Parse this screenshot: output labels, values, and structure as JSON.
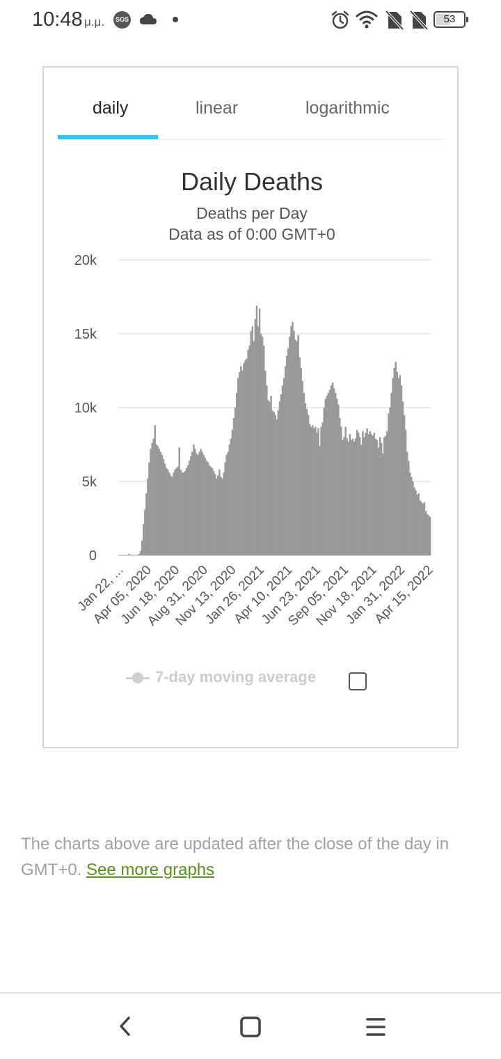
{
  "status_bar": {
    "time": "10:48",
    "ampm": "μ.μ.",
    "sos": "SOS",
    "battery": "53",
    "battery_fraction": 0.53,
    "icons": [
      "sos-icon",
      "cloud-icon",
      "dot-icon",
      "alarm-icon",
      "wifi-icon",
      "no-sim-icon",
      "no-sim-icon",
      "battery-icon"
    ]
  },
  "tabs": [
    {
      "label": "daily",
      "active": true
    },
    {
      "label": "linear",
      "active": false
    },
    {
      "label": "logarithmic",
      "active": false
    }
  ],
  "colors": {
    "accent": "#33c6ec",
    "bar": "#999999",
    "link": "#5a8f1f"
  },
  "chart_data": {
    "type": "bar",
    "title": "Daily Deaths",
    "subtitle": "Deaths per Day",
    "subtitle2": "Data as of 0:00 GMT+0",
    "ylim": [
      0,
      20000
    ],
    "y_ticks": [
      0,
      5000,
      10000,
      15000,
      20000
    ],
    "y_tick_labels": [
      "0",
      "5k",
      "10k",
      "15k",
      "20k"
    ],
    "x_tick_labels": [
      "Jan 22, ...",
      "Apr 05, 2020",
      "Jun 18, 2020",
      "Aug 31, 2020",
      "Nov 13, 2020",
      "Jan 26, 2021",
      "Apr 10, 2021",
      "Jun 23, 2021",
      "Sep 05, 2021",
      "Nov 18, 2021",
      "Jan 31, 2022",
      "Apr 15, 2022"
    ],
    "grid": true,
    "legend": [
      "7-day moving average"
    ],
    "x_start": "Jan 22, 2020",
    "bar_interval_days": 4,
    "values": [
      0,
      0,
      0,
      0,
      0,
      0,
      0,
      100,
      0,
      0,
      0,
      0,
      0,
      0,
      100,
      300,
      1000,
      2100,
      3100,
      4200,
      5200,
      6300,
      7200,
      7600,
      7900,
      8800,
      7500,
      7400,
      7200,
      7000,
      6800,
      6500,
      6200,
      5900,
      5800,
      5600,
      5400,
      5300,
      5600,
      5800,
      5900,
      6000,
      7300,
      5800,
      5600,
      5600,
      5700,
      5900,
      6100,
      6400,
      6700,
      7000,
      7500,
      7200,
      6900,
      6800,
      7000,
      7200,
      7000,
      6800,
      6600,
      6400,
      6300,
      6100,
      6000,
      5900,
      5700,
      5500,
      5200,
      5400,
      5800,
      5300,
      5200,
      5600,
      6300,
      6800,
      7000,
      7500,
      7900,
      8500,
      9300,
      10000,
      11000,
      12000,
      12400,
      12800,
      12500,
      13000,
      13200,
      13300,
      13900,
      14200,
      15200,
      15500,
      14500,
      16000,
      16900,
      15500,
      16700,
      15000,
      14800,
      14200,
      12500,
      11500,
      10500,
      10400,
      10800,
      9800,
      9700,
      9500,
      9200,
      9800,
      10400,
      10900,
      11500,
      12000,
      12800,
      13500,
      14000,
      14800,
      15500,
      15800,
      15200,
      14600,
      14500,
      14900,
      13400,
      12700,
      11800,
      11000,
      10300,
      9900,
      9500,
      8900,
      8700,
      8800,
      8600,
      8700,
      8300,
      8600,
      7400,
      8700,
      9000,
      10000,
      10600,
      10800,
      11000,
      11200,
      11500,
      11700,
      11300,
      11000,
      10600,
      10200,
      9300,
      8700,
      7800,
      8000,
      8700,
      7900,
      7700,
      8200,
      7800,
      7900,
      7700,
      7900,
      8500,
      8300,
      8000,
      7500,
      8400,
      8000,
      8300,
      8600,
      8200,
      8400,
      8200,
      8100,
      8300,
      7900,
      7800,
      7300,
      8000,
      7600,
      6900,
      8000,
      8100,
      8400,
      9600,
      10000,
      11000,
      12000,
      12700,
      13100,
      12400,
      12000,
      12200,
      11500,
      10400,
      9500,
      8500,
      7000,
      6400,
      5600,
      5300,
      5000,
      4600,
      4400,
      4100,
      4200,
      3700,
      3600,
      3500,
      3600,
      3000,
      2800,
      2700,
      2600
    ]
  },
  "legend": {
    "label": "7-day moving average"
  },
  "footer": {
    "text": "The charts above are updated after the close of the day in GMT+0.",
    "link": "See more graphs"
  },
  "nav_bar": {
    "buttons": [
      "back-icon",
      "home-icon",
      "menu-icon"
    ]
  }
}
